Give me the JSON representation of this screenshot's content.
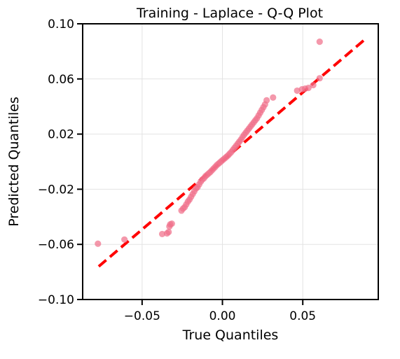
{
  "chart_data": {
    "type": "scatter",
    "title": "Training - Laplace - Q-Q Plot",
    "xlabel": "True Quantiles",
    "ylabel": "Predicted Quantiles",
    "xlim": [
      -0.087,
      0.097
    ],
    "ylim": [
      -0.1,
      0.1
    ],
    "x_ticks": [
      -0.05,
      0.0,
      0.05
    ],
    "x_tick_labels": [
      "−0.05",
      "0.00",
      "0.05"
    ],
    "y_ticks": [
      -0.1,
      -0.06,
      -0.02,
      0.02,
      0.06,
      0.1
    ],
    "y_tick_labels": [
      "−0.10",
      "−0.06",
      "−0.02",
      "0.02",
      "0.06",
      "0.10"
    ],
    "grid": true,
    "reference_line": {
      "x": [
        -0.077,
        0.088
      ],
      "y": [
        -0.076,
        0.088
      ],
      "color": "#ff0000",
      "style": "dashed"
    },
    "series": [
      {
        "marker_color": "#f0708a",
        "x": [
          -0.0775,
          -0.061,
          -0.0375,
          -0.0345,
          -0.0335,
          -0.033,
          -0.0325,
          -0.0315,
          -0.0255,
          -0.0245,
          -0.0235,
          -0.0225,
          -0.0215,
          -0.0205,
          -0.0195,
          -0.0185,
          -0.0175,
          -0.0165,
          -0.0155,
          -0.0145,
          -0.0135,
          -0.0125,
          -0.0115,
          -0.0105,
          -0.0095,
          -0.0085,
          -0.0075,
          -0.0065,
          -0.0055,
          -0.0045,
          -0.0035,
          -0.0025,
          -0.0015,
          -0.0005,
          0.0005,
          0.0015,
          0.0025,
          0.0035,
          0.0045,
          0.0055,
          0.0065,
          0.0075,
          0.0085,
          0.0095,
          0.0105,
          0.0115,
          0.0125,
          0.0135,
          0.0145,
          0.0155,
          0.0165,
          0.0175,
          0.0185,
          0.0195,
          0.0205,
          0.0215,
          0.0225,
          0.0235,
          0.0245,
          0.0255,
          0.0265,
          0.0275,
          0.0315,
          0.0465,
          0.0495,
          0.0515,
          0.0535,
          0.0565,
          0.0605,
          0.0605
        ],
        "y": [
          -0.0595,
          -0.0565,
          -0.0525,
          -0.052,
          -0.051,
          -0.047,
          -0.0455,
          -0.045,
          -0.0355,
          -0.034,
          -0.033,
          -0.031,
          -0.029,
          -0.0275,
          -0.0255,
          -0.0235,
          -0.0215,
          -0.0195,
          -0.0185,
          -0.0165,
          -0.0145,
          -0.013,
          -0.012,
          -0.0105,
          -0.0095,
          -0.0085,
          -0.0075,
          -0.0062,
          -0.005,
          -0.0038,
          -0.0025,
          -0.0015,
          -0.0005,
          0.0005,
          0.0015,
          0.0025,
          0.0035,
          0.0045,
          0.0058,
          0.007,
          0.0085,
          0.01,
          0.0115,
          0.013,
          0.0145,
          0.016,
          0.0178,
          0.0195,
          0.021,
          0.0225,
          0.024,
          0.0255,
          0.027,
          0.0285,
          0.03,
          0.0315,
          0.0335,
          0.0355,
          0.0375,
          0.0395,
          0.0415,
          0.0445,
          0.0465,
          0.0515,
          0.0525,
          0.053,
          0.0535,
          0.0555,
          0.0605,
          0.087
        ]
      }
    ]
  }
}
